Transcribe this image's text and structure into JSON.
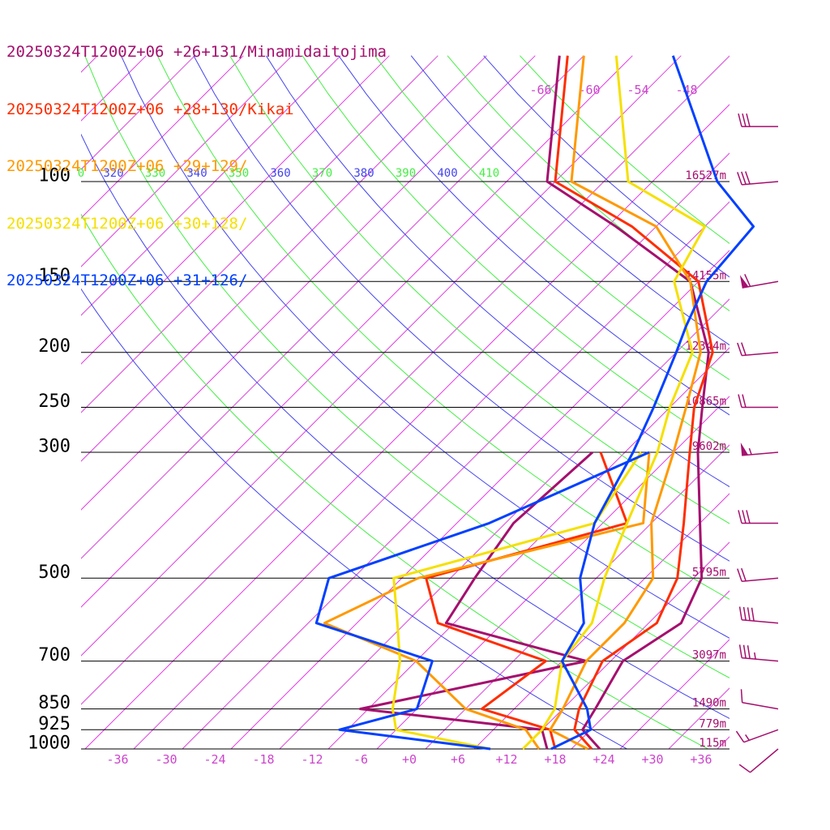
{
  "legend": [
    {
      "text": "20250324T1200Z+06 +26+131/Minamidaitojima",
      "color": "#a50f6e"
    },
    {
      "text": "20250324T1200Z+06 +28+130/Kikai",
      "color": "#ff2d00"
    },
    {
      "text": "20250324T1200Z+06 +29+129/",
      "color": "#ff9900"
    },
    {
      "text": "20250324T1200Z+06 +30+128/",
      "color": "#f5e000"
    },
    {
      "text": "20250324T1200Z+06 +31+126/",
      "color": "#0040ff"
    }
  ],
  "chart_data": {
    "type": "line",
    "diagram": "skew-T log-p",
    "pressure_levels": [
      {
        "p": "100",
        "height": "16527m"
      },
      {
        "p": "150",
        "height": "14155m"
      },
      {
        "p": "200",
        "height": "12344m"
      },
      {
        "p": "250",
        "height": "10865m"
      },
      {
        "p": "300",
        "height": "9602m"
      },
      {
        "p": "500",
        "height": "5795m"
      },
      {
        "p": "700",
        "height": "3097m"
      },
      {
        "p": "850",
        "height": "1490m"
      },
      {
        "p": "925",
        "height": "779m"
      },
      {
        "p": "1000",
        "height": "115m"
      }
    ],
    "temperature_ticks": [
      "-36",
      "-30",
      "-24",
      "-18",
      "-12",
      "-6",
      "+0",
      "+6",
      "+12",
      "+18",
      "+24",
      "+30",
      "+36"
    ],
    "mixing_ratio_labels": [
      "-66",
      "-60",
      "-54",
      "-48"
    ],
    "theta_labels": [
      "0",
      "320",
      "330",
      "340",
      "350",
      "360",
      "370",
      "380",
      "390",
      "400",
      "410"
    ],
    "series": [
      {
        "name": "20250324T1200Z+06 +26+131/Minamidaitojima",
        "color": "#a50f6e",
        "temperature": [
          [
            1000,
            23.5
          ],
          [
            925,
            19
          ],
          [
            850,
            18
          ],
          [
            700,
            15.5
          ],
          [
            600,
            18
          ],
          [
            500,
            15
          ],
          [
            400,
            8
          ],
          [
            300,
            -1
          ],
          [
            250,
            -6
          ],
          [
            200,
            -12
          ],
          [
            150,
            -23
          ],
          [
            120,
            -39
          ],
          [
            100,
            -53
          ],
          [
            60,
            -67
          ]
        ],
        "dewpoint": [
          [
            1000,
            17
          ],
          [
            925,
            14
          ],
          [
            850,
            -11
          ],
          [
            700,
            11
          ],
          [
            600,
            -11
          ],
          [
            500,
            -13
          ],
          [
            400,
            -15
          ],
          [
            300,
            -14
          ]
        ]
      },
      {
        "name": "20250324T1200Z+06 +28+130/Kikai",
        "color": "#ff2d00",
        "temperature": [
          [
            1000,
            22.5
          ],
          [
            925,
            18
          ],
          [
            850,
            16
          ],
          [
            700,
            13
          ],
          [
            600,
            15
          ],
          [
            500,
            12
          ],
          [
            400,
            6
          ],
          [
            300,
            -2
          ],
          [
            250,
            -7
          ],
          [
            200,
            -11.5
          ],
          [
            150,
            -22
          ],
          [
            120,
            -37
          ],
          [
            100,
            -52
          ],
          [
            60,
            -66
          ]
        ],
        "dewpoint": [
          [
            1000,
            18
          ],
          [
            925,
            15
          ],
          [
            850,
            4
          ],
          [
            700,
            6
          ],
          [
            600,
            -12
          ],
          [
            500,
            -19
          ],
          [
            400,
            -1
          ],
          [
            300,
            -13
          ]
        ]
      },
      {
        "name": "20250324T1200Z+06 +29+129/",
        "color": "#ff9900",
        "temperature": [
          [
            1000,
            22
          ],
          [
            925,
            15
          ],
          [
            850,
            14
          ],
          [
            700,
            11
          ],
          [
            600,
            11
          ],
          [
            500,
            9
          ],
          [
            400,
            2
          ],
          [
            300,
            -4
          ],
          [
            250,
            -8
          ],
          [
            200,
            -13
          ],
          [
            150,
            -23
          ],
          [
            120,
            -34
          ],
          [
            100,
            -50
          ],
          [
            60,
            -64
          ]
        ],
        "dewpoint": [
          [
            1000,
            16
          ],
          [
            925,
            12
          ],
          [
            850,
            2
          ],
          [
            700,
            -10
          ],
          [
            600,
            -26
          ],
          [
            500,
            -20
          ],
          [
            400,
            1
          ],
          [
            300,
            -7
          ]
        ]
      },
      {
        "name": "20250324T1200Z+06 +30+128/",
        "color": "#f5e000",
        "temperature": [
          [
            1000,
            14
          ],
          [
            925,
            14
          ],
          [
            850,
            13
          ],
          [
            700,
            8
          ],
          [
            600,
            7
          ],
          [
            500,
            3
          ],
          [
            400,
            -1
          ],
          [
            300,
            -6
          ],
          [
            250,
            -10
          ],
          [
            200,
            -14
          ],
          [
            150,
            -25
          ],
          [
            120,
            -28
          ],
          [
            100,
            -43
          ],
          [
            60,
            -60
          ]
        ],
        "dewpoint": [
          [
            1000,
            10
          ],
          [
            925,
            -4
          ],
          [
            850,
            -7
          ],
          [
            700,
            -12
          ],
          [
            600,
            -17
          ],
          [
            500,
            -23
          ],
          [
            400,
            -5
          ],
          [
            300,
            -8
          ]
        ]
      },
      {
        "name": "20250324T1200Z+06 +31+126/",
        "color": "#0040ff",
        "temperature": [
          [
            1000,
            17.5
          ],
          [
            925,
            20
          ],
          [
            850,
            17
          ],
          [
            700,
            8
          ],
          [
            600,
            6
          ],
          [
            500,
            0
          ],
          [
            400,
            -5
          ],
          [
            300,
            -9
          ],
          [
            250,
            -12
          ],
          [
            200,
            -16
          ],
          [
            180,
            -18
          ],
          [
            150,
            -21
          ],
          [
            120,
            -22
          ],
          [
            100,
            -32
          ],
          [
            60,
            -53
          ]
        ],
        "dewpoint": [
          [
            1000,
            10
          ],
          [
            925,
            -11
          ],
          [
            850,
            -4
          ],
          [
            700,
            -8
          ],
          [
            600,
            -27
          ],
          [
            500,
            -31
          ],
          [
            400,
            -18
          ],
          [
            300,
            -7
          ]
        ]
      }
    ],
    "wind_barbs": [
      {
        "p": 1000,
        "dir": 230,
        "kt": 10
      },
      {
        "p": 925,
        "dir": 250,
        "kt": 15
      },
      {
        "p": 850,
        "dir": 280,
        "kt": 10
      },
      {
        "p": 700,
        "dir": 275,
        "kt": 35
      },
      {
        "p": 600,
        "dir": 275,
        "kt": 40
      },
      {
        "p": 500,
        "dir": 265,
        "kt": 20
      },
      {
        "p": 400,
        "dir": 270,
        "kt": 30
      },
      {
        "p": 300,
        "dir": 265,
        "kt": 55
      },
      {
        "p": 250,
        "dir": 270,
        "kt": 20
      },
      {
        "p": 200,
        "dir": 265,
        "kt": 20
      },
      {
        "p": 150,
        "dir": 260,
        "kt": 60
      },
      {
        "p": 100,
        "dir": 265,
        "kt": 30
      },
      {
        "p": 80,
        "dir": 270,
        "kt": 30
      }
    ]
  }
}
